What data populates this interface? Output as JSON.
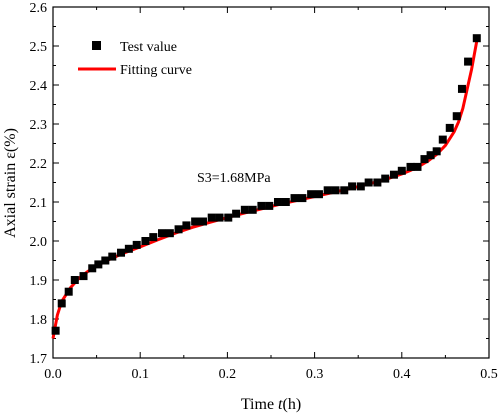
{
  "chart_data": {
    "type": "scatter",
    "title": "",
    "xlabel": {
      "prefix": "Time ",
      "italic": "t",
      "suffix": "(h)"
    },
    "ylabel": "Axial strain ε(%)",
    "xlim": [
      0.0,
      0.5
    ],
    "ylim": [
      1.7,
      2.6
    ],
    "xticks": [
      "0.0",
      "0.1",
      "0.2",
      "0.3",
      "0.4",
      "0.5"
    ],
    "yticks": [
      "1.7",
      "1.8",
      "1.9",
      "2.0",
      "2.1",
      "2.2",
      "2.3",
      "2.4",
      "2.5",
      "2.6"
    ],
    "grid": false,
    "legend_position": "top-left",
    "annotation": "S3=1.68MPa",
    "series": [
      {
        "name": "Test value",
        "kind": "scatter",
        "marker": "square",
        "color": "#000000",
        "x": [
          0.003,
          0.01,
          0.018,
          0.025,
          0.035,
          0.045,
          0.052,
          0.06,
          0.068,
          0.078,
          0.087,
          0.096,
          0.106,
          0.115,
          0.125,
          0.134,
          0.144,
          0.153,
          0.163,
          0.172,
          0.182,
          0.191,
          0.201,
          0.21,
          0.22,
          0.229,
          0.239,
          0.248,
          0.258,
          0.267,
          0.277,
          0.286,
          0.296,
          0.305,
          0.315,
          0.324,
          0.334,
          0.343,
          0.353,
          0.362,
          0.372,
          0.381,
          0.391,
          0.4,
          0.41,
          0.418,
          0.426,
          0.433,
          0.44,
          0.447,
          0.455,
          0.463,
          0.469,
          0.476,
          0.486
        ],
        "y": [
          1.77,
          1.84,
          1.87,
          1.9,
          1.91,
          1.93,
          1.94,
          1.95,
          1.96,
          1.97,
          1.98,
          1.99,
          2.0,
          2.01,
          2.02,
          2.02,
          2.03,
          2.04,
          2.05,
          2.05,
          2.06,
          2.06,
          2.06,
          2.07,
          2.08,
          2.08,
          2.09,
          2.09,
          2.1,
          2.1,
          2.11,
          2.11,
          2.12,
          2.12,
          2.13,
          2.13,
          2.13,
          2.14,
          2.14,
          2.15,
          2.15,
          2.16,
          2.17,
          2.18,
          2.19,
          2.19,
          2.21,
          2.22,
          2.23,
          2.26,
          2.29,
          2.32,
          2.39,
          2.46,
          2.52
        ]
      },
      {
        "name": "Fitting curve",
        "kind": "line",
        "color": "#ff0000",
        "x": [
          0.0,
          0.005,
          0.01,
          0.02,
          0.03,
          0.04,
          0.05,
          0.06,
          0.08,
          0.1,
          0.12,
          0.14,
          0.16,
          0.18,
          0.2,
          0.22,
          0.24,
          0.26,
          0.28,
          0.3,
          0.32,
          0.34,
          0.36,
          0.38,
          0.4,
          0.41,
          0.42,
          0.43,
          0.44,
          0.45,
          0.46,
          0.465,
          0.47,
          0.475,
          0.48,
          0.487
        ],
        "y": [
          1.75,
          1.81,
          1.845,
          1.88,
          1.905,
          1.922,
          1.935,
          1.948,
          1.968,
          1.985,
          2.003,
          2.02,
          2.035,
          2.048,
          2.06,
          2.072,
          2.083,
          2.094,
          2.104,
          2.114,
          2.124,
          2.134,
          2.145,
          2.157,
          2.172,
          2.181,
          2.192,
          2.205,
          2.222,
          2.245,
          2.28,
          2.305,
          2.34,
          2.39,
          2.44,
          2.525
        ]
      }
    ]
  }
}
